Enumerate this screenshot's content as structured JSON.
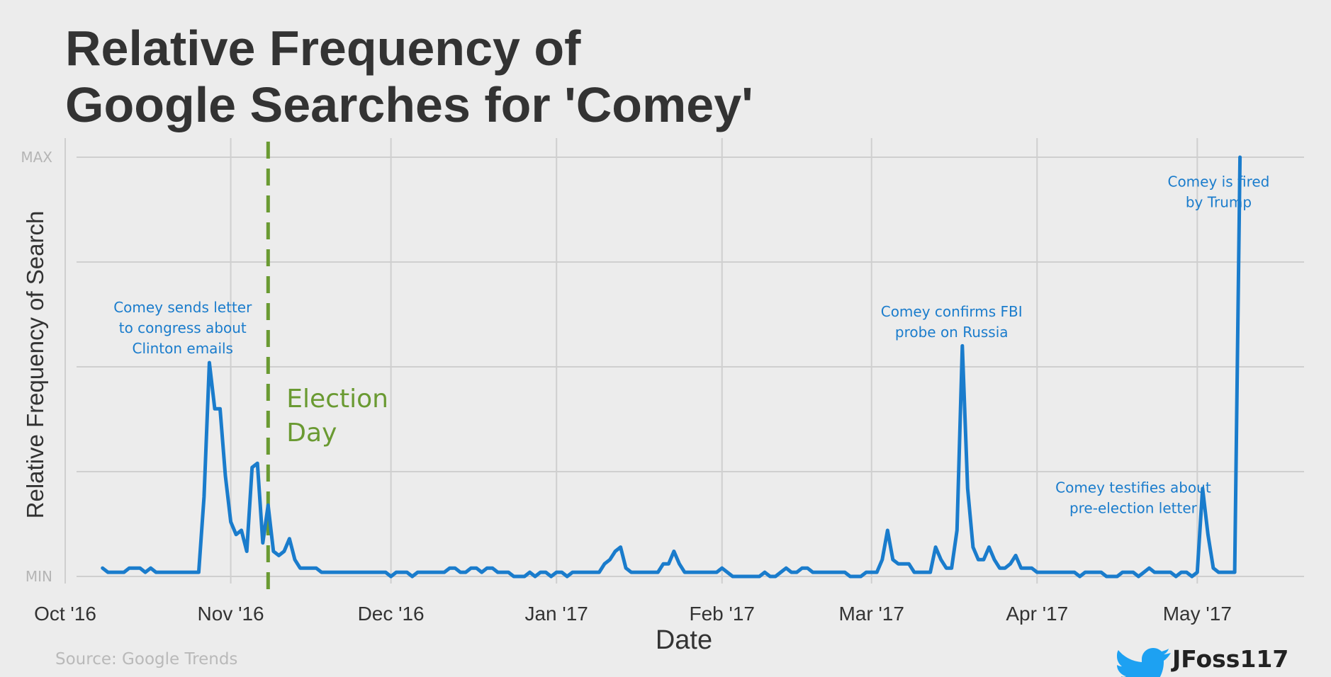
{
  "chart_data": {
    "type": "line",
    "title_lines": [
      "Relative Frequency of",
      "Google Searches for 'Comey'"
    ],
    "xlabel": "Date",
    "ylabel": "Relative Frequency of Search",
    "x_ticks": [
      {
        "date": "2016-10-01",
        "label": "Oct '16"
      },
      {
        "date": "2016-11-01",
        "label": "Nov '16"
      },
      {
        "date": "2016-12-01",
        "label": "Dec '16"
      },
      {
        "date": "2017-01-01",
        "label": "Jan '17"
      },
      {
        "date": "2017-02-01",
        "label": "Feb '17"
      },
      {
        "date": "2017-03-01",
        "label": "Mar '17"
      },
      {
        "date": "2017-04-01",
        "label": "Apr '17"
      },
      {
        "date": "2017-05-01",
        "label": "May '17"
      }
    ],
    "y_ticks": [
      {
        "value": 0,
        "label": "MIN"
      },
      {
        "value": 25,
        "label": ""
      },
      {
        "value": 50,
        "label": ""
      },
      {
        "value": 75,
        "label": ""
      },
      {
        "value": 100,
        "label": "MAX"
      }
    ],
    "xlim": [
      "2016-10-01",
      "2017-05-21"
    ],
    "ylim": [
      0,
      100
    ],
    "grid": true,
    "line_color": "#1a7ccc",
    "vline_color": "#6a9a32",
    "series": [
      {
        "name": "",
        "points": [
          [
            "2016-10-08",
            2
          ],
          [
            "2016-10-09",
            1
          ],
          [
            "2016-10-10",
            1
          ],
          [
            "2016-10-11",
            1
          ],
          [
            "2016-10-12",
            1
          ],
          [
            "2016-10-13",
            2
          ],
          [
            "2016-10-14",
            2
          ],
          [
            "2016-10-15",
            2
          ],
          [
            "2016-10-16",
            1
          ],
          [
            "2016-10-17",
            2
          ],
          [
            "2016-10-18",
            1
          ],
          [
            "2016-10-19",
            1
          ],
          [
            "2016-10-20",
            1
          ],
          [
            "2016-10-21",
            1
          ],
          [
            "2016-10-22",
            1
          ],
          [
            "2016-10-23",
            1
          ],
          [
            "2016-10-24",
            1
          ],
          [
            "2016-10-25",
            1
          ],
          [
            "2016-10-26",
            1
          ],
          [
            "2016-10-27",
            19
          ],
          [
            "2016-10-28",
            51
          ],
          [
            "2016-10-29",
            40
          ],
          [
            "2016-10-30",
            40
          ],
          [
            "2016-10-31",
            24
          ],
          [
            "2016-11-01",
            13
          ],
          [
            "2016-11-02",
            10
          ],
          [
            "2016-11-03",
            11
          ],
          [
            "2016-11-04",
            6
          ],
          [
            "2016-11-05",
            26
          ],
          [
            "2016-11-06",
            27
          ],
          [
            "2016-11-07",
            8
          ],
          [
            "2016-11-08",
            17
          ],
          [
            "2016-11-09",
            6
          ],
          [
            "2016-11-10",
            5
          ],
          [
            "2016-11-11",
            6
          ],
          [
            "2016-11-12",
            9
          ],
          [
            "2016-11-13",
            4
          ],
          [
            "2016-11-14",
            2
          ],
          [
            "2016-11-15",
            2
          ],
          [
            "2016-11-16",
            2
          ],
          [
            "2016-11-17",
            2
          ],
          [
            "2016-11-18",
            1
          ],
          [
            "2016-11-19",
            1
          ],
          [
            "2016-11-20",
            1
          ],
          [
            "2016-11-22",
            1
          ],
          [
            "2016-11-25",
            1
          ],
          [
            "2016-11-28",
            1
          ],
          [
            "2016-11-29",
            1
          ],
          [
            "2016-11-30",
            1
          ],
          [
            "2016-12-01",
            0
          ],
          [
            "2016-12-02",
            1
          ],
          [
            "2016-12-03",
            1
          ],
          [
            "2016-12-04",
            1
          ],
          [
            "2016-12-05",
            0
          ],
          [
            "2016-12-06",
            1
          ],
          [
            "2016-12-08",
            1
          ],
          [
            "2016-12-10",
            1
          ],
          [
            "2016-12-11",
            1
          ],
          [
            "2016-12-12",
            2
          ],
          [
            "2016-12-13",
            2
          ],
          [
            "2016-12-14",
            1
          ],
          [
            "2016-12-15",
            1
          ],
          [
            "2016-12-16",
            2
          ],
          [
            "2016-12-17",
            2
          ],
          [
            "2016-12-18",
            1
          ],
          [
            "2016-12-19",
            2
          ],
          [
            "2016-12-20",
            2
          ],
          [
            "2016-12-21",
            1
          ],
          [
            "2016-12-22",
            1
          ],
          [
            "2016-12-23",
            1
          ],
          [
            "2016-12-24",
            0
          ],
          [
            "2016-12-26",
            0
          ],
          [
            "2016-12-27",
            1
          ],
          [
            "2016-12-28",
            0
          ],
          [
            "2016-12-29",
            1
          ],
          [
            "2016-12-30",
            1
          ],
          [
            "2016-12-31",
            0
          ],
          [
            "2017-01-01",
            1
          ],
          [
            "2017-01-02",
            1
          ],
          [
            "2017-01-03",
            0
          ],
          [
            "2017-01-04",
            1
          ],
          [
            "2017-01-06",
            1
          ],
          [
            "2017-01-09",
            1
          ],
          [
            "2017-01-10",
            3
          ],
          [
            "2017-01-11",
            4
          ],
          [
            "2017-01-12",
            6
          ],
          [
            "2017-01-13",
            7
          ],
          [
            "2017-01-14",
            2
          ],
          [
            "2017-01-15",
            1
          ],
          [
            "2017-01-16",
            1
          ],
          [
            "2017-01-18",
            1
          ],
          [
            "2017-01-20",
            1
          ],
          [
            "2017-01-21",
            3
          ],
          [
            "2017-01-22",
            3
          ],
          [
            "2017-01-23",
            6
          ],
          [
            "2017-01-24",
            3
          ],
          [
            "2017-01-25",
            1
          ],
          [
            "2017-01-27",
            1
          ],
          [
            "2017-01-30",
            1
          ],
          [
            "2017-01-31",
            1
          ],
          [
            "2017-02-01",
            2
          ],
          [
            "2017-02-02",
            1
          ],
          [
            "2017-02-03",
            0
          ],
          [
            "2017-02-05",
            0
          ],
          [
            "2017-02-08",
            0
          ],
          [
            "2017-02-09",
            1
          ],
          [
            "2017-02-10",
            0
          ],
          [
            "2017-02-11",
            0
          ],
          [
            "2017-02-12",
            1
          ],
          [
            "2017-02-13",
            2
          ],
          [
            "2017-02-14",
            1
          ],
          [
            "2017-02-15",
            1
          ],
          [
            "2017-02-16",
            2
          ],
          [
            "2017-02-17",
            2
          ],
          [
            "2017-02-18",
            1
          ],
          [
            "2017-02-20",
            1
          ],
          [
            "2017-02-22",
            1
          ],
          [
            "2017-02-23",
            1
          ],
          [
            "2017-02-24",
            1
          ],
          [
            "2017-02-25",
            0
          ],
          [
            "2017-02-27",
            0
          ],
          [
            "2017-02-28",
            1
          ],
          [
            "2017-03-01",
            1
          ],
          [
            "2017-03-02",
            1
          ],
          [
            "2017-03-03",
            4
          ],
          [
            "2017-03-04",
            11
          ],
          [
            "2017-03-05",
            4
          ],
          [
            "2017-03-06",
            3
          ],
          [
            "2017-03-07",
            3
          ],
          [
            "2017-03-08",
            3
          ],
          [
            "2017-03-09",
            1
          ],
          [
            "2017-03-10",
            1
          ],
          [
            "2017-03-11",
            1
          ],
          [
            "2017-03-12",
            1
          ],
          [
            "2017-03-13",
            7
          ],
          [
            "2017-03-14",
            4
          ],
          [
            "2017-03-15",
            2
          ],
          [
            "2017-03-16",
            2
          ],
          [
            "2017-03-17",
            11
          ],
          [
            "2017-03-18",
            55
          ],
          [
            "2017-03-19",
            21
          ],
          [
            "2017-03-20",
            7
          ],
          [
            "2017-03-21",
            4
          ],
          [
            "2017-03-22",
            4
          ],
          [
            "2017-03-23",
            7
          ],
          [
            "2017-03-24",
            4
          ],
          [
            "2017-03-25",
            2
          ],
          [
            "2017-03-26",
            2
          ],
          [
            "2017-03-27",
            3
          ],
          [
            "2017-03-28",
            5
          ],
          [
            "2017-03-29",
            2
          ],
          [
            "2017-03-30",
            2
          ],
          [
            "2017-03-31",
            2
          ],
          [
            "2017-04-01",
            1
          ],
          [
            "2017-04-03",
            1
          ],
          [
            "2017-04-06",
            1
          ],
          [
            "2017-04-08",
            1
          ],
          [
            "2017-04-09",
            0
          ],
          [
            "2017-04-10",
            1
          ],
          [
            "2017-04-12",
            1
          ],
          [
            "2017-04-13",
            1
          ],
          [
            "2017-04-14",
            0
          ],
          [
            "2017-04-16",
            0
          ],
          [
            "2017-04-17",
            1
          ],
          [
            "2017-04-19",
            1
          ],
          [
            "2017-04-20",
            0
          ],
          [
            "2017-04-21",
            1
          ],
          [
            "2017-04-22",
            2
          ],
          [
            "2017-04-23",
            1
          ],
          [
            "2017-04-24",
            1
          ],
          [
            "2017-04-26",
            1
          ],
          [
            "2017-04-27",
            0
          ],
          [
            "2017-04-28",
            1
          ],
          [
            "2017-04-29",
            1
          ],
          [
            "2017-04-30",
            0
          ],
          [
            "2017-05-01",
            1
          ],
          [
            "2017-05-02",
            21
          ],
          [
            "2017-05-03",
            10
          ],
          [
            "2017-05-04",
            2
          ],
          [
            "2017-05-05",
            1
          ],
          [
            "2017-05-06",
            1
          ],
          [
            "2017-05-07",
            1
          ],
          [
            "2017-05-08",
            1
          ],
          [
            "2017-05-09",
            100
          ]
        ]
      }
    ],
    "vline": {
      "date": "2016-11-08",
      "label_lines": [
        "Election",
        "Day"
      ]
    },
    "annotations": [
      {
        "lines": [
          "Comey sends letter",
          "to congress about",
          "Clinton emails"
        ],
        "date": "2016-10-23",
        "value": 63
      },
      {
        "lines": [
          "Comey confirms FBI",
          "probe on Russia"
        ],
        "date": "2017-03-16",
        "value": 62
      },
      {
        "lines": [
          "Comey testifies about",
          "pre-election letter"
        ],
        "date": "2017-04-19",
        "value": 20
      },
      {
        "lines": [
          "Comey is fired",
          "by Trump"
        ],
        "date": "2017-05-05",
        "value": 93
      }
    ],
    "source": "Source: Google Trends",
    "handle": "JFoss117"
  }
}
